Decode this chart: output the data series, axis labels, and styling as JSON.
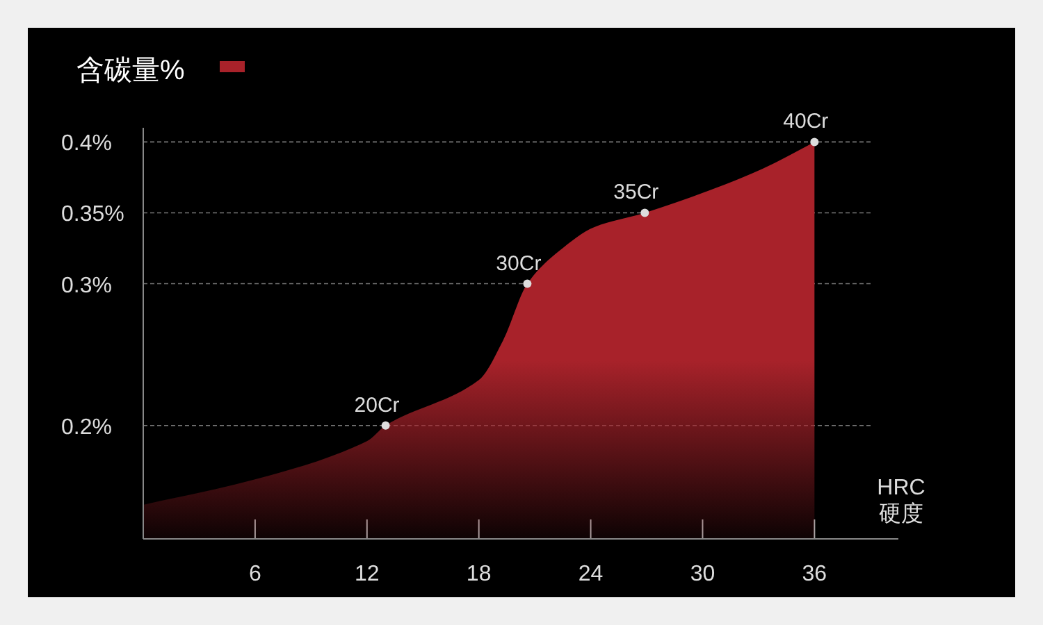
{
  "chart_data": {
    "type": "area",
    "series": [
      {
        "name": "含碳量%",
        "color": "#a8222a",
        "x": [
          0,
          6,
          12,
          13,
          18,
          19.3,
          20.6,
          22.3,
          24.2,
          26.9,
          30.2,
          33.2,
          36
        ],
        "values": [
          0.144,
          0.162,
          0.189,
          0.2,
          0.232,
          0.26,
          0.3,
          0.323,
          0.34,
          0.35,
          0.365,
          0.381,
          0.4
        ]
      }
    ],
    "xlim": [
      0,
      40.5
    ],
    "ylim": [
      0.12,
      0.41
    ],
    "xticks": [
      6,
      12,
      18,
      24,
      30,
      36
    ],
    "yticks": [
      {
        "value": 0.2,
        "label": "0.2%"
      },
      {
        "value": 0.3,
        "label": "0.3%"
      },
      {
        "value": 0.35,
        "label": "0.35%"
      },
      {
        "value": 0.4,
        "label": "0.4%"
      }
    ],
    "xlabel": "HRC\n硬度",
    "grid": "y",
    "legend": "top left",
    "annotations": [
      {
        "text": "20Cr",
        "x": 13,
        "y": 0.2
      },
      {
        "text": "30Cr",
        "x": 20.6,
        "y": 0.3
      },
      {
        "text": "35Cr",
        "x": 26.9,
        "y": 0.35
      },
      {
        "text": "40Cr",
        "x": 36,
        "y": 0.4
      }
    ]
  }
}
